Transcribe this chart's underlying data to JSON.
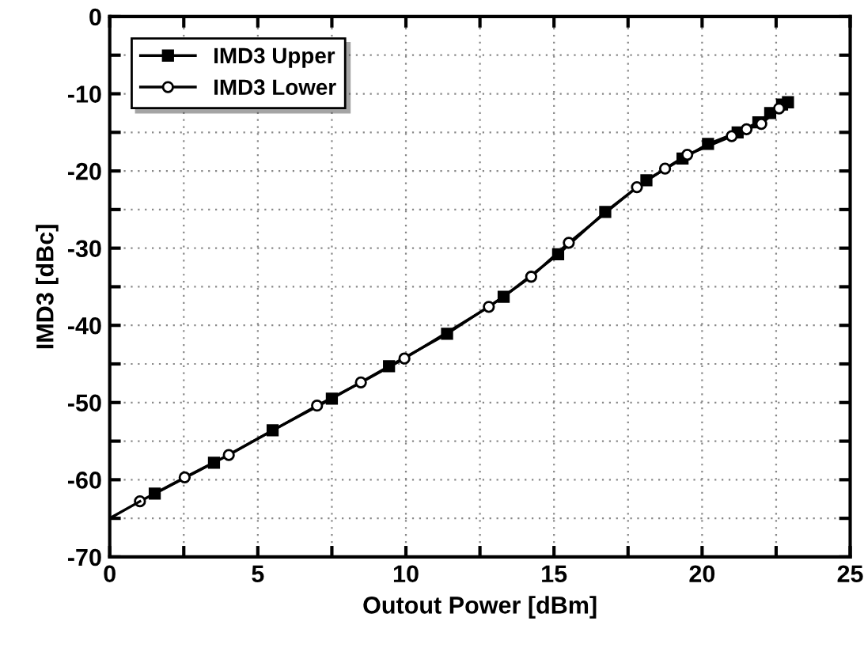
{
  "chart_data": {
    "type": "line",
    "xlabel": "Outout Power [dBm]",
    "ylabel": "IMD3 [dBc]",
    "xlim": [
      0,
      25
    ],
    "ylim": [
      -70,
      0
    ],
    "xticks": [
      0,
      {
        "value": 2.5,
        "label": null
      },
      5,
      {
        "value": 7.5,
        "label": null
      },
      10,
      {
        "value": 12.5,
        "label": null
      },
      15,
      {
        "value": 17.5,
        "label": null
      },
      20,
      {
        "value": 22.5,
        "label": null
      },
      25
    ],
    "yticks": [
      -70,
      {
        "value": -65,
        "label": null
      },
      -60,
      {
        "value": -55,
        "label": null
      },
      -50,
      {
        "value": -45,
        "label": null
      },
      -40,
      {
        "value": -35,
        "label": null
      },
      -30,
      {
        "value": -25,
        "label": null
      },
      -20,
      {
        "value": -15,
        "label": null
      },
      -10,
      {
        "value": -5,
        "label": null
      },
      0
    ],
    "grid": true,
    "legend": "top left",
    "series": [
      {
        "name": "IMD3 Upper",
        "color": "#000000",
        "marker": "square",
        "x": [
          1.52,
          3.52,
          5.5,
          7.5,
          9.43,
          11.39,
          13.3,
          15.14,
          16.73,
          18.12,
          19.34,
          20.2,
          21.2,
          21.9,
          22.3,
          22.7,
          22.9
        ],
        "values": [
          -61.8,
          -57.8,
          -53.6,
          -49.5,
          -45.3,
          -41.1,
          -36.3,
          -30.8,
          -25.3,
          -21.2,
          -18.4,
          -16.5,
          -15.0,
          -13.7,
          -12.5,
          -11.4,
          -11.1
        ]
      },
      {
        "name": "IMD3 Lower",
        "color": "#000000",
        "marker": "circle",
        "x": [
          1.02,
          2.53,
          4.02,
          7.0,
          8.48,
          9.95,
          12.8,
          14.23,
          15.5,
          17.8,
          18.75,
          19.5,
          21.0,
          21.5,
          22.0,
          22.6
        ],
        "values": [
          -62.8,
          -59.7,
          -56.8,
          -50.4,
          -47.4,
          -44.3,
          -37.6,
          -33.7,
          -29.3,
          -22.1,
          -19.7,
          -17.9,
          -15.5,
          -14.6,
          -13.9,
          -11.9
        ]
      },
      {
        "color": "#000000",
        "marker": "none",
        "x": [
          0,
          1.02
        ],
        "values": [
          -65,
          -62.8
        ]
      }
    ]
  }
}
